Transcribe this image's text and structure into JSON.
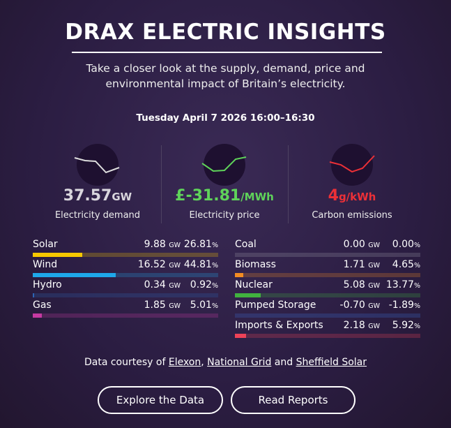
{
  "header": {
    "title": "DRAX ELECTRIC INSIGHTS",
    "subtitle": [
      "Take a closer look at the supply, demand, price and",
      "environmental impact of Britain’s electricity."
    ],
    "date": "Tuesday April 7 2026 16:00–16:30"
  },
  "metrics": [
    {
      "value": "37.57",
      "unit": "GW",
      "label": "Electricity demand",
      "color": "#d9d6dd"
    },
    {
      "value": "£-31.81",
      "unit": "/MWh",
      "label": "Electricity price",
      "color": "#5fd35a"
    },
    {
      "value": "4",
      "unit": "g/kWh",
      "label": "Carbon emissions",
      "color": "#ec3037"
    }
  ],
  "table": {
    "power_unit": "GW",
    "share_unit": "%",
    "columns": [
      [
        {
          "name": "Solar",
          "power": "9.88",
          "share": 26.81,
          "color": "#f6c800"
        },
        {
          "name": "Wind",
          "power": "16.52",
          "share": 44.81,
          "color": "#1ea8ea"
        },
        {
          "name": "Hydro",
          "power": "0.34",
          "share": 0.92,
          "color": "#2d65b4"
        },
        {
          "name": "Gas",
          "power": "1.85",
          "share": 5.01,
          "color": "#c63aa2"
        }
      ],
      [
        {
          "name": "Coal",
          "power": "0.00",
          "share": 0,
          "share_label": "0.00",
          "color": "#9a9aa6"
        },
        {
          "name": "Biomass",
          "power": "1.71",
          "share": 4.65,
          "color": "#f28c22"
        },
        {
          "name": "Nuclear",
          "power": "5.08",
          "share": 13.77,
          "color": "#41b13f"
        },
        {
          "name": "Pumped Storage",
          "power": "-0.70",
          "share": -1.89,
          "color": "#3b6fd4"
        },
        {
          "name": "Imports & Exports",
          "power": "2.18",
          "share": 5.92,
          "color": "#ee4258"
        }
      ]
    ]
  },
  "footer": {
    "prefix": "Data courtesy of",
    "links": [
      "Elexon",
      "National Grid",
      "Sheffield Solar"
    ],
    "separator": ",",
    "conjunction": "and"
  },
  "buttons": [
    "Explore the Data",
    "Read Reports"
  ]
}
